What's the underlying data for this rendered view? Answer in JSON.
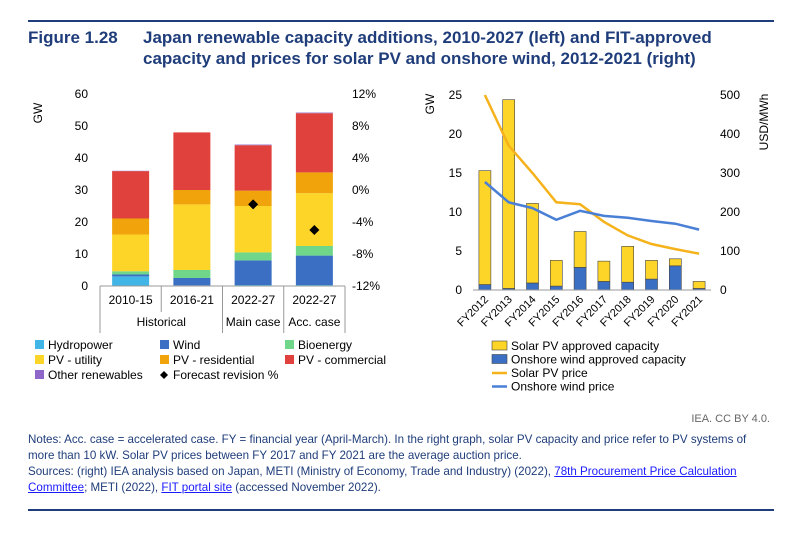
{
  "figure": {
    "number": "Figure 1.28",
    "title": "Japan renewable capacity additions, 2010-2027 (left) and FIT-approved capacity and prices for solar PV and onshore wind, 2012-2021 (right)"
  },
  "colors": {
    "title": "#1f3d7a",
    "hydropower": "#41b6e6",
    "wind": "#3b6fc4",
    "bioenergy": "#6fd68a",
    "pv_utility": "#fdd428",
    "pv_residential": "#f0a30a",
    "pv_commercial": "#e0413c",
    "other_renewables": "#8e67c9",
    "forecast": "#000000",
    "solar_price": "#f5b21b",
    "wind_price": "#4a7fd6"
  },
  "credit": "IEA. CC BY 4.0.",
  "notes": {
    "line1": "Notes: Acc. case = accelerated case. FY = financial year (April-March). In the right graph, solar PV capacity and price refer to PV systems of more than 10 kW. Solar PV prices between FY 2017 and FY 2021 are the average auction price.",
    "sources_prefix": "Sources: (right) IEA analysis based on Japan, METI (Ministry of Economy, Trade and Industry) (2022), ",
    "link1": "78th Procurement Price Calculation Committee",
    "sources_mid": "; METI (2022), ",
    "link2": "FIT portal site",
    "sources_suffix": " (accessed November 2022)."
  },
  "chart_data": [
    {
      "type": "bar",
      "stacked": true,
      "ylabel": "GW",
      "ylim": [
        0,
        60
      ],
      "yticks": [
        "0",
        "10",
        "20",
        "30",
        "40",
        "50",
        "60"
      ],
      "y2lim": [
        -12,
        12
      ],
      "y2ticks": [
        "-12%",
        "-8%",
        "-4%",
        "0%",
        "4%",
        "8%",
        "12%"
      ],
      "categories": [
        "2010-15",
        "2016-21",
        "2022-27",
        "2022-27"
      ],
      "groups": [
        {
          "label": "Historical",
          "span": 2
        },
        {
          "label": "Main case",
          "span": 1
        },
        {
          "label": "Acc. case",
          "span": 1
        }
      ],
      "series": [
        {
          "name": "Hydropower",
          "color_key": "hydropower",
          "values": [
            3.0,
            0.2,
            0.3,
            0.3
          ]
        },
        {
          "name": "Wind",
          "color_key": "wind",
          "values": [
            0.6,
            2.3,
            7.7,
            9.2
          ]
        },
        {
          "name": "Bioenergy",
          "color_key": "bioenergy",
          "values": [
            1.0,
            2.5,
            2.5,
            3.0
          ]
        },
        {
          "name": "PV - utility",
          "color_key": "pv_utility",
          "values": [
            11.5,
            20.5,
            14.5,
            16.5
          ]
        },
        {
          "name": "PV - residential",
          "color_key": "pv_residential",
          "values": [
            5.0,
            4.5,
            4.8,
            6.5
          ]
        },
        {
          "name": "PV - commercial",
          "color_key": "pv_commercial",
          "values": [
            14.8,
            18.0,
            14.2,
            18.5
          ]
        },
        {
          "name": "Other renewables",
          "color_key": "other_renewables",
          "values": [
            0.1,
            0.0,
            0.2,
            0.2
          ]
        }
      ],
      "markers": {
        "name": "Forecast revision %",
        "values": [
          null,
          null,
          -1.8,
          -5.0
        ]
      },
      "legend_position": "bottom",
      "legend": [
        "Hydropower",
        "Wind",
        "Bioenergy",
        "PV - utility",
        "PV - residential",
        "PV - commercial",
        "Other renewables",
        "Forecast revision %"
      ]
    },
    {
      "type": "bar",
      "combo": "bar+line",
      "ylabel": "GW",
      "ylim": [
        0,
        25
      ],
      "yticks": [
        "0",
        "5",
        "10",
        "15",
        "20",
        "25"
      ],
      "y2label": "USD/MWh",
      "y2lim": [
        0,
        500
      ],
      "y2ticks": [
        "0",
        "100",
        "200",
        "300",
        "400",
        "500"
      ],
      "categories": [
        "FY2012",
        "FY2013",
        "FY2014",
        "FY2015",
        "FY2016",
        "FY2017",
        "FY2018",
        "FY2019",
        "FY2020",
        "FY2021"
      ],
      "series": [
        {
          "name": "Solar PV approved capacity",
          "kind": "bar",
          "color_key": "pv_utility",
          "values": [
            14.6,
            24.2,
            10.2,
            3.3,
            4.6,
            2.6,
            4.6,
            2.4,
            0.9,
            0.9
          ]
        },
        {
          "name": "Onshore wind approved capacity",
          "kind": "bar",
          "color_key": "wind",
          "values": [
            0.7,
            0.2,
            0.9,
            0.5,
            2.9,
            1.1,
            1.0,
            1.4,
            3.1,
            0.2
          ]
        },
        {
          "name": "Solar PV price",
          "kind": "line",
          "color_key": "solar_price",
          "values": [
            510,
            370,
            300,
            225,
            220,
            175,
            140,
            118,
            105,
            93
          ]
        },
        {
          "name": "Onshore wind price",
          "kind": "line",
          "color_key": "wind_price",
          "values": [
            277,
            225,
            210,
            180,
            203,
            190,
            185,
            177,
            170,
            155
          ]
        }
      ],
      "legend_position": "bottom",
      "legend": [
        "Solar PV approved capacity",
        "Onshore wind approved capacity",
        "Solar PV price",
        "Onshore wind price"
      ]
    }
  ]
}
